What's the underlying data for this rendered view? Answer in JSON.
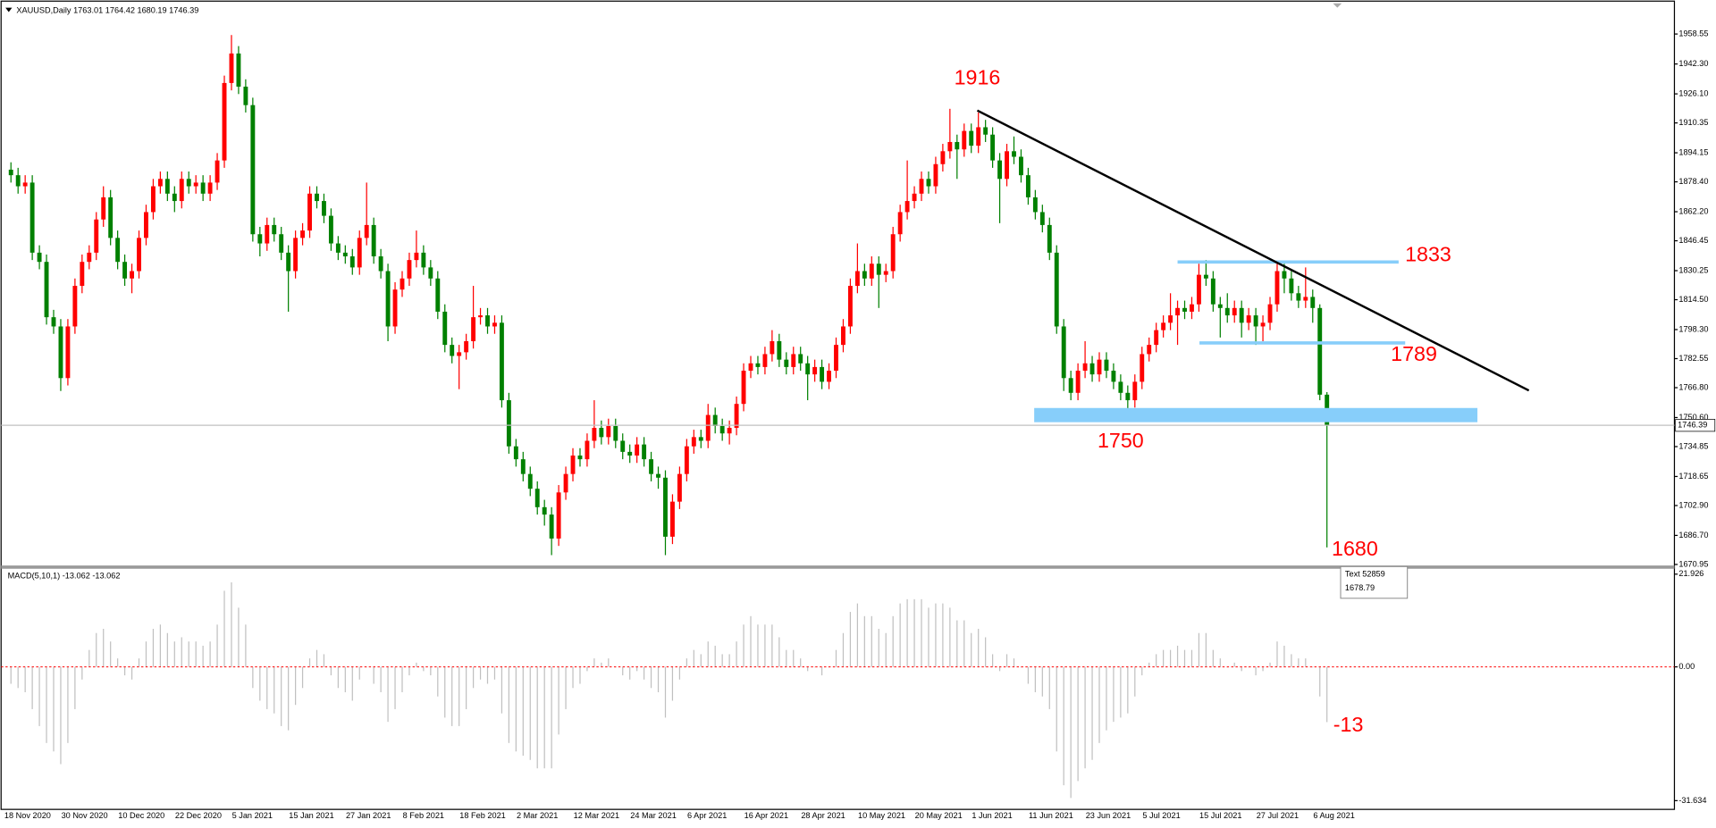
{
  "chart_data": [
    {
      "type": "candlestick",
      "title": "XAUUSD,Daily  1763.01 1764.42 1680.19 1746.39",
      "categories": [
        "18 Nov 2020",
        null,
        null,
        null,
        null,
        null,
        null,
        null,
        "30 Nov 2020",
        null,
        null,
        null,
        null,
        null,
        null,
        null,
        "10 Dec 2020",
        null,
        null,
        null,
        null,
        null,
        null,
        null,
        "22 Dec 2020",
        null,
        null,
        null,
        null,
        null,
        null,
        null,
        "5 Jan 2021",
        null,
        null,
        null,
        null,
        null,
        null,
        null,
        "15 Jan 2021",
        null,
        null,
        null,
        null,
        null,
        null,
        null,
        "27 Jan 2021",
        null,
        null,
        null,
        null,
        null,
        null,
        null,
        "8 Feb 2021",
        null,
        null,
        null,
        null,
        null,
        null,
        null,
        "18 Feb 2021",
        null,
        null,
        null,
        null,
        null,
        null,
        null,
        "2 Mar 2021",
        null,
        null,
        null,
        null,
        null,
        null,
        null,
        "12 Mar 2021",
        null,
        null,
        null,
        null,
        null,
        null,
        null,
        "24 Mar 2021",
        null,
        null,
        null,
        null,
        null,
        null,
        null,
        "6 Apr 2021",
        null,
        null,
        null,
        null,
        null,
        null,
        null,
        "16 Apr 2021",
        null,
        null,
        null,
        null,
        null,
        null,
        null,
        "28 Apr 2021",
        null,
        null,
        null,
        null,
        null,
        null,
        null,
        "10 May 2021",
        null,
        null,
        null,
        null,
        null,
        null,
        null,
        "20 May 2021",
        null,
        null,
        null,
        null,
        null,
        null,
        null,
        "1 Jun 2021",
        null,
        null,
        null,
        null,
        null,
        null,
        null,
        "11 Jun 2021",
        null,
        null,
        null,
        null,
        null,
        null,
        null,
        "23 Jun 2021",
        null,
        null,
        null,
        null,
        null,
        null,
        null,
        "5 Jul 2021",
        null,
        null,
        null,
        null,
        null,
        null,
        null,
        "15 Jul 2021",
        null,
        null,
        null,
        null,
        null,
        null,
        null,
        "27 Jul 2021",
        null,
        null,
        null,
        null,
        null,
        null,
        null,
        "6 Aug 2021",
        null
      ],
      "open": [
        1885,
        1882,
        1876,
        1878,
        1840,
        1835,
        1805,
        1800,
        1772,
        1800,
        1822,
        1835,
        1840,
        1858,
        1870,
        1848,
        1835,
        1826,
        1830,
        1848,
        1862,
        1876,
        1880,
        1872,
        1868,
        1880,
        1876,
        1878,
        1872,
        1878,
        1890,
        1932,
        1948,
        1930,
        1920,
        1850,
        1845,
        1855,
        1850,
        1840,
        1830,
        1848,
        1852,
        1872,
        1868,
        1860,
        1845,
        1840,
        1838,
        1832,
        1848,
        1855,
        1838,
        1830,
        1800,
        1820,
        1826,
        1836,
        1840,
        1832,
        1826,
        1808,
        1790,
        1784,
        1786,
        1792,
        1805,
        1806,
        1800,
        1802,
        1760,
        1735,
        1728,
        1720,
        1712,
        1702,
        1698,
        1685,
        1710,
        1720,
        1730,
        1728,
        1738,
        1745,
        1740,
        1746,
        1738,
        1732,
        1730,
        1736,
        1728,
        1720,
        1718,
        1686,
        1705,
        1720,
        1735,
        1740,
        1738,
        1752,
        1746,
        1742,
        1745,
        1758,
        1776,
        1780,
        1778,
        1785,
        1792,
        1782,
        1778,
        1785,
        1780,
        1774,
        1778,
        1770,
        1776,
        1790,
        1800,
        1822,
        1830,
        1826,
        1834,
        1828,
        1830,
        1850,
        1862,
        1868,
        1872,
        1880,
        1876,
        1888,
        1895,
        1900,
        1896,
        1906,
        1898,
        1908,
        1904,
        1890,
        1880,
        1895,
        1892,
        1882,
        1870,
        1862,
        1855,
        1840,
        1800,
        1772,
        1764,
        1776,
        1780,
        1774,
        1782,
        1776,
        1770,
        1764,
        1760,
        1770,
        1785,
        1790,
        1798,
        1802,
        1806,
        1810,
        1808,
        1812,
        1828,
        1826,
        1812,
        1810,
        1806,
        1810,
        1802,
        1806,
        1800,
        1802,
        1812,
        1830,
        1826,
        1818,
        1814,
        1816,
        1810,
        1763.01
      ],
      "high": [
        1889,
        1886,
        1882,
        1882,
        1844,
        1839,
        1809,
        1804,
        1804,
        1826,
        1839,
        1844,
        1862,
        1876,
        1874,
        1852,
        1839,
        1834,
        1852,
        1866,
        1880,
        1884,
        1884,
        1876,
        1884,
        1884,
        1882,
        1882,
        1882,
        1894,
        1936,
        1958,
        1952,
        1934,
        1924,
        1854,
        1859,
        1859,
        1854,
        1844,
        1852,
        1856,
        1876,
        1876,
        1872,
        1864,
        1849,
        1844,
        1842,
        1852,
        1878,
        1859,
        1842,
        1834,
        1824,
        1830,
        1840,
        1852,
        1844,
        1836,
        1830,
        1812,
        1794,
        1790,
        1796,
        1822,
        1810,
        1810,
        1806,
        1806,
        1764,
        1739,
        1732,
        1724,
        1716,
        1706,
        1702,
        1714,
        1724,
        1734,
        1734,
        1742,
        1760,
        1749,
        1750,
        1750,
        1742,
        1736,
        1740,
        1740,
        1732,
        1724,
        1722,
        1709,
        1724,
        1739,
        1744,
        1744,
        1758,
        1756,
        1750,
        1749,
        1762,
        1780,
        1784,
        1784,
        1789,
        1798,
        1796,
        1786,
        1789,
        1789,
        1784,
        1782,
        1782,
        1780,
        1794,
        1804,
        1826,
        1845,
        1834,
        1838,
        1838,
        1834,
        1854,
        1866,
        1890,
        1876,
        1884,
        1884,
        1892,
        1899,
        1918,
        1904,
        1910,
        1910,
        1916,
        1912,
        1908,
        1894,
        1899,
        1903,
        1896,
        1886,
        1874,
        1866,
        1859,
        1844,
        1804,
        1776,
        1780,
        1792,
        1784,
        1786,
        1786,
        1780,
        1774,
        1768,
        1774,
        1789,
        1794,
        1802,
        1806,
        1818,
        1814,
        1814,
        1816,
        1834,
        1836,
        1830,
        1816,
        1818,
        1814,
        1814,
        1810,
        1810,
        1806,
        1816,
        1834,
        1834,
        1830,
        1822,
        1832,
        1820,
        1812,
        1764.42
      ],
      "low": [
        1878,
        1872,
        1872,
        1836,
        1831,
        1801,
        1796,
        1765,
        1768,
        1796,
        1818,
        1831,
        1836,
        1854,
        1844,
        1831,
        1822,
        1818,
        1826,
        1844,
        1858,
        1872,
        1868,
        1862,
        1864,
        1872,
        1872,
        1868,
        1868,
        1874,
        1886,
        1928,
        1926,
        1916,
        1846,
        1838,
        1841,
        1846,
        1836,
        1808,
        1826,
        1844,
        1848,
        1864,
        1856,
        1841,
        1836,
        1834,
        1828,
        1828,
        1844,
        1834,
        1826,
        1792,
        1796,
        1816,
        1822,
        1832,
        1828,
        1822,
        1804,
        1786,
        1780,
        1766,
        1782,
        1788,
        1801,
        1796,
        1796,
        1756,
        1731,
        1724,
        1716,
        1708,
        1698,
        1692,
        1676,
        1681,
        1706,
        1716,
        1724,
        1724,
        1734,
        1736,
        1736,
        1734,
        1728,
        1726,
        1726,
        1724,
        1716,
        1712,
        1676,
        1682,
        1701,
        1716,
        1731,
        1734,
        1734,
        1742,
        1738,
        1736,
        1741,
        1754,
        1772,
        1774,
        1774,
        1781,
        1778,
        1774,
        1774,
        1776,
        1760,
        1770,
        1766,
        1766,
        1772,
        1786,
        1796,
        1818,
        1822,
        1822,
        1810,
        1824,
        1826,
        1846,
        1858,
        1864,
        1868,
        1872,
        1872,
        1884,
        1891,
        1880,
        1892,
        1894,
        1894,
        1900,
        1886,
        1856,
        1876,
        1888,
        1878,
        1866,
        1858,
        1851,
        1836,
        1796,
        1765,
        1760,
        1760,
        1772,
        1770,
        1770,
        1772,
        1766,
        1760,
        1750,
        1756,
        1766,
        1781,
        1786,
        1794,
        1798,
        1790,
        1804,
        1804,
        1808,
        1822,
        1808,
        1794,
        1802,
        1802,
        1794,
        1798,
        1790,
        1792,
        1798,
        1808,
        1818,
        1814,
        1810,
        1810,
        1802,
        1760,
        1680.19
      ],
      "close": [
        1882,
        1876,
        1878,
        1840,
        1835,
        1805,
        1800,
        1772,
        1800,
        1822,
        1835,
        1840,
        1858,
        1870,
        1848,
        1835,
        1826,
        1830,
        1848,
        1862,
        1876,
        1880,
        1872,
        1868,
        1880,
        1876,
        1878,
        1872,
        1878,
        1890,
        1932,
        1948,
        1930,
        1920,
        1850,
        1845,
        1855,
        1850,
        1840,
        1830,
        1848,
        1852,
        1872,
        1868,
        1860,
        1845,
        1840,
        1838,
        1832,
        1848,
        1855,
        1838,
        1830,
        1800,
        1820,
        1826,
        1836,
        1840,
        1832,
        1826,
        1808,
        1790,
        1784,
        1786,
        1792,
        1805,
        1806,
        1800,
        1802,
        1760,
        1735,
        1728,
        1720,
        1712,
        1702,
        1698,
        1685,
        1710,
        1720,
        1730,
        1728,
        1738,
        1745,
        1740,
        1746,
        1738,
        1732,
        1730,
        1736,
        1728,
        1720,
        1718,
        1686,
        1705,
        1720,
        1735,
        1740,
        1738,
        1752,
        1746,
        1742,
        1745,
        1758,
        1776,
        1780,
        1778,
        1785,
        1792,
        1782,
        1778,
        1785,
        1780,
        1774,
        1778,
        1770,
        1776,
        1790,
        1800,
        1822,
        1830,
        1826,
        1834,
        1828,
        1830,
        1850,
        1862,
        1868,
        1872,
        1880,
        1876,
        1888,
        1895,
        1900,
        1896,
        1906,
        1898,
        1908,
        1904,
        1890,
        1880,
        1895,
        1892,
        1882,
        1870,
        1862,
        1855,
        1840,
        1800,
        1772,
        1764,
        1776,
        1780,
        1774,
        1782,
        1776,
        1770,
        1764,
        1760,
        1770,
        1785,
        1790,
        1798,
        1802,
        1806,
        1810,
        1808,
        1812,
        1828,
        1826,
        1812,
        1810,
        1806,
        1810,
        1802,
        1806,
        1800,
        1802,
        1812,
        1830,
        1826,
        1818,
        1814,
        1816,
        1810,
        1763,
        1746.39
      ],
      "up_color": "#ff0000",
      "down_color": "#008000",
      "last_price": 1746.39,
      "ylim": [
        1669.8,
        1975.2
      ],
      "yticks": [
        1958.55,
        {
          "value": 1942.3,
          "label": "1942.30"
        },
        {
          "value": 1926.1,
          "label": "1926.10"
        },
        1910.35,
        1894.15,
        {
          "value": 1878.4,
          "label": "1878.40"
        },
        {
          "value": 1862.2,
          "label": "1862.20"
        },
        1846.45,
        1830.25,
        {
          "value": 1814.5,
          "label": "1814.50"
        },
        {
          "value": 1798.3,
          "label": "1798.30"
        },
        1782.55,
        {
          "value": 1766.8,
          "label": "1766.80"
        },
        {
          "value": 1750.6,
          "label": "1750.60"
        },
        1734.85,
        1718.65,
        {
          "value": 1702.9,
          "label": "1702.90"
        },
        {
          "value": 1686.7,
          "label": "1686.70"
        },
        1670.95
      ],
      "annotations": [
        "1916",
        "1833",
        "1789",
        "1750",
        "1680"
      ],
      "tooltip": [
        "Text 52859",
        "1678.79"
      ]
    },
    {
      "type": "bar",
      "title": "MACD(5,10,1) -13.062 -13.062",
      "values": [
        -4,
        -5,
        -6,
        -10,
        -14,
        -18,
        -20,
        -23,
        -18,
        -10,
        -3,
        4,
        8,
        9,
        6,
        2,
        -2,
        -3,
        2,
        6,
        9,
        10,
        8,
        6,
        7,
        6,
        6,
        5,
        6,
        10,
        18,
        20,
        14,
        10,
        -5,
        -8,
        -10,
        -11,
        -14,
        -15,
        -9,
        -5,
        2,
        4,
        3,
        -2,
        -5,
        -6,
        -8,
        -3,
        0,
        -4,
        -6,
        -13,
        -10,
        -6,
        -2,
        1,
        -1,
        -2,
        -7,
        -12,
        -14,
        -14,
        -10,
        -5,
        -3,
        -4,
        -3,
        -11,
        -18,
        -20,
        -21,
        -22,
        -24,
        -24,
        -24,
        -16,
        -10,
        -5,
        -4,
        -1,
        2,
        1,
        2,
        0,
        -2,
        -3,
        -1,
        -3,
        -5,
        -6,
        -12,
        -8,
        -3,
        2,
        4,
        3,
        6,
        5,
        3,
        3,
        6,
        10,
        12,
        10,
        10,
        10,
        7,
        4,
        4,
        2,
        -1,
        0,
        -2,
        0,
        4,
        8,
        13,
        15,
        12,
        12,
        9,
        8,
        12,
        15,
        16,
        16,
        16,
        14,
        15,
        15,
        14,
        11,
        11,
        8,
        9,
        7,
        3,
        -1,
        3,
        2,
        0,
        -4,
        -6,
        -7,
        -10,
        -20,
        -28,
        -31,
        -27,
        -24,
        -22,
        -18,
        -15,
        -13,
        -12,
        -11,
        -7,
        -2,
        1,
        3,
        4,
        4,
        5,
        4,
        4,
        8,
        8,
        4,
        2,
        0,
        1,
        -1,
        0,
        -2,
        -1,
        1,
        6,
        5,
        3,
        2,
        2,
        0,
        -7,
        -13.062
      ],
      "color": "#c0c0c0",
      "zero_line_color": "#ff0000",
      "ylim": [
        -33.7,
        23.2
      ],
      "yticks": [
        21.926,
        {
          "value": 0,
          "label": "0.00"
        },
        -31.634
      ],
      "annotations": [
        "-13"
      ]
    }
  ]
}
